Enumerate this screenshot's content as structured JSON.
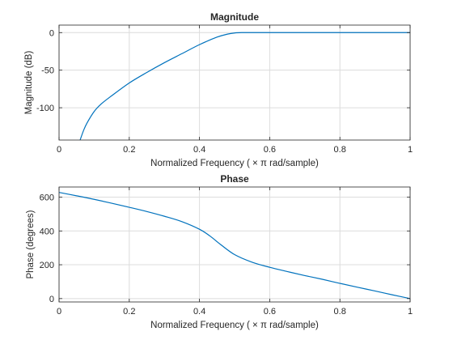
{
  "colors": {
    "line": "#0072BD",
    "grid": "#dcdcdc",
    "axes": "#262626"
  },
  "chart_data": [
    {
      "type": "line",
      "title": "Magnitude",
      "xlabel": "Normalized  Frequency    ( × π   rad/sample)",
      "ylabel": "Magnitude (dB)",
      "xlim": [
        0,
        1
      ],
      "ylim": [
        -143,
        10
      ],
      "xticks": [
        0,
        0.2,
        0.4,
        0.6,
        0.8,
        1
      ],
      "xtick_labels": [
        "0",
        "0.2",
        "0.4",
        "0.6",
        "0.8",
        "1"
      ],
      "yticks": [
        -100,
        -50,
        0
      ],
      "ytick_labels": [
        "-100",
        "-50",
        "0"
      ],
      "grid": true,
      "series": [
        {
          "x": [
            0.06,
            0.07,
            0.08,
            0.1,
            0.12,
            0.15,
            0.2,
            0.25,
            0.3,
            0.35,
            0.4,
            0.45,
            0.48,
            0.5,
            0.52,
            0.55,
            0.6,
            0.7,
            0.8,
            0.9,
            1.0
          ],
          "values": [
            -143,
            -130,
            -120,
            -105,
            -95,
            -84,
            -67,
            -53,
            -40,
            -28,
            -16,
            -6,
            -2,
            -0.5,
            0,
            0,
            0,
            0,
            0,
            0,
            0
          ]
        }
      ]
    },
    {
      "type": "line",
      "title": "Phase",
      "xlabel": "Normalized  Frequency    ( × π   rad/sample)",
      "ylabel": "Phase (degrees)",
      "xlim": [
        0,
        1
      ],
      "ylim": [
        -20,
        660
      ],
      "xticks": [
        0,
        0.2,
        0.4,
        0.6,
        0.8,
        1
      ],
      "xtick_labels": [
        "0",
        "0.2",
        "0.4",
        "0.6",
        "0.8",
        "1"
      ],
      "yticks": [
        0,
        200,
        400,
        600
      ],
      "ytick_labels": [
        "0",
        "200",
        "400",
        "600"
      ],
      "grid": true,
      "series": [
        {
          "x": [
            0,
            0.05,
            0.1,
            0.15,
            0.2,
            0.25,
            0.3,
            0.35,
            0.4,
            0.43,
            0.46,
            0.5,
            0.55,
            0.6,
            0.65,
            0.7,
            0.75,
            0.8,
            0.85,
            0.9,
            0.95,
            1.0
          ],
          "values": [
            628,
            608,
            587,
            564,
            540,
            515,
            487,
            455,
            410,
            370,
            320,
            260,
            215,
            185,
            160,
            136,
            114,
            90,
            67,
            45,
            22,
            0
          ]
        }
      ]
    }
  ]
}
